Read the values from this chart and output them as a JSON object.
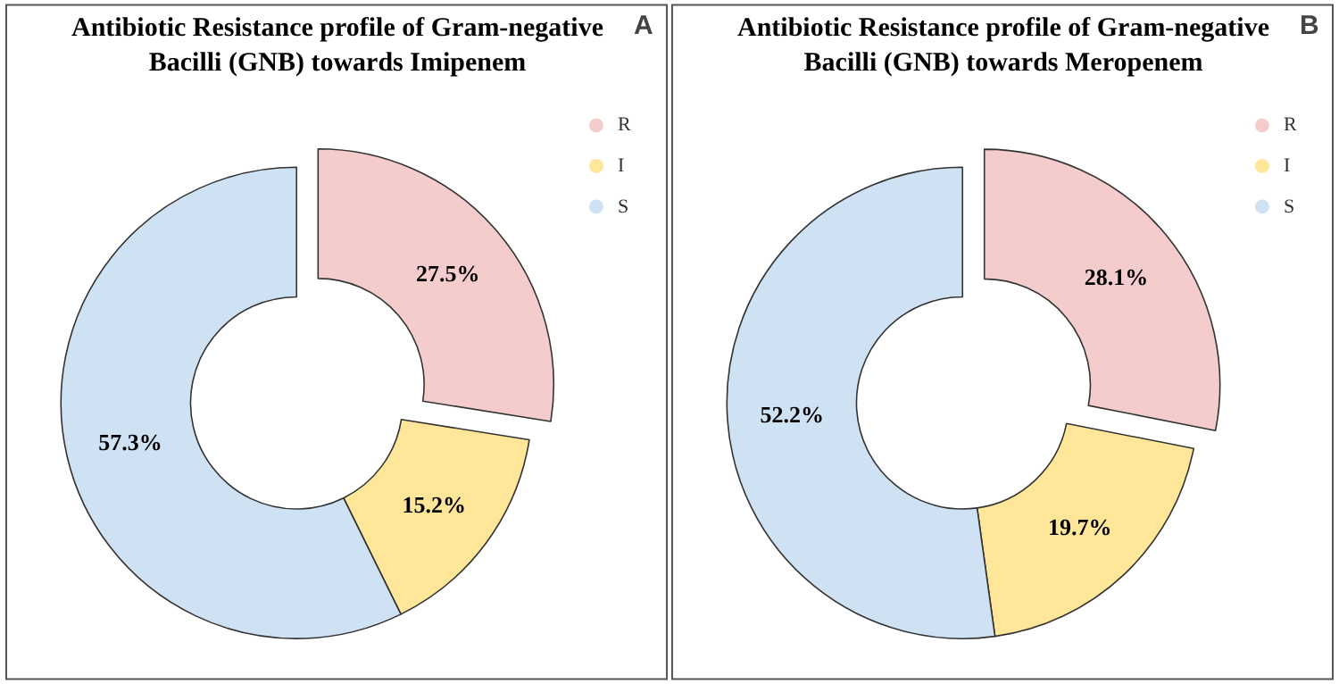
{
  "chart_data": [
    {
      "type": "donut",
      "title": "Antibiotic Resistance profile of Gram-negative Bacilli (GNB) towards Imipenem",
      "categories": [
        "R",
        "I",
        "S"
      ],
      "values": [
        27.5,
        15.2,
        57.3
      ],
      "value_labels": [
        "27.5%",
        "15.2%",
        "57.3%"
      ],
      "colors": [
        "#f4cccc",
        "#ffe699",
        "#cfe2f3"
      ],
      "legend": "top right",
      "annotations": [
        "A"
      ]
    },
    {
      "type": "donut",
      "title": "Antibiotic Resistance profile of Gram-negative Bacilli (GNB) towards Meropenem",
      "categories": [
        "R",
        "I",
        "S"
      ],
      "values": [
        28.1,
        19.7,
        52.2
      ],
      "value_labels": [
        "28.1%",
        "19.7%",
        "52.2%"
      ],
      "colors": [
        "#f4cccc",
        "#ffe699",
        "#cfe2f3"
      ],
      "legend": "top right",
      "annotations": [
        "B"
      ]
    }
  ]
}
